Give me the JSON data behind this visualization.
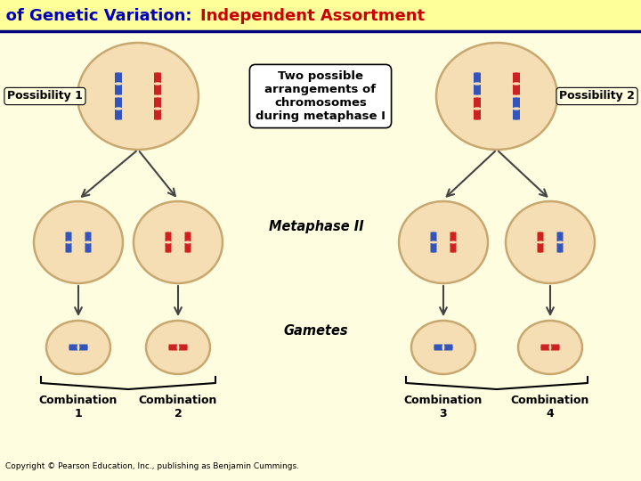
{
  "title_part1": "One Cause of Genetic Variation: ",
  "title_part2": "Independent Assortment",
  "title_color1": "#0000BB",
  "title_color2": "#CC0000",
  "title_bg": "#FFFF99",
  "main_bg": "#FFFDE0",
  "border_color": "#000080",
  "possibility1_label": "Possibility 1",
  "possibility2_label": "Possibility 2",
  "center_text": "Two possible\narrangements of\nchromosomes\nduring metaphase I",
  "metaphase2_label": "Metaphase II",
  "gametes_label": "Gametes",
  "comb_labels": [
    "Combination\n1",
    "Combination\n2",
    "Combination\n3",
    "Combination\n4"
  ],
  "copyright": "Copyright © Pearson Education, Inc., publishing as Benjamin Cummings.",
  "cell_fill": "#F5DEB3",
  "cell_edge": "#C8A870",
  "blue": "#3355BB",
  "red": "#CC2222",
  "arrow_color": "#444444",
  "title_fontsize": 13,
  "figw": 7.2,
  "figh": 5.4,
  "dpi": 100
}
